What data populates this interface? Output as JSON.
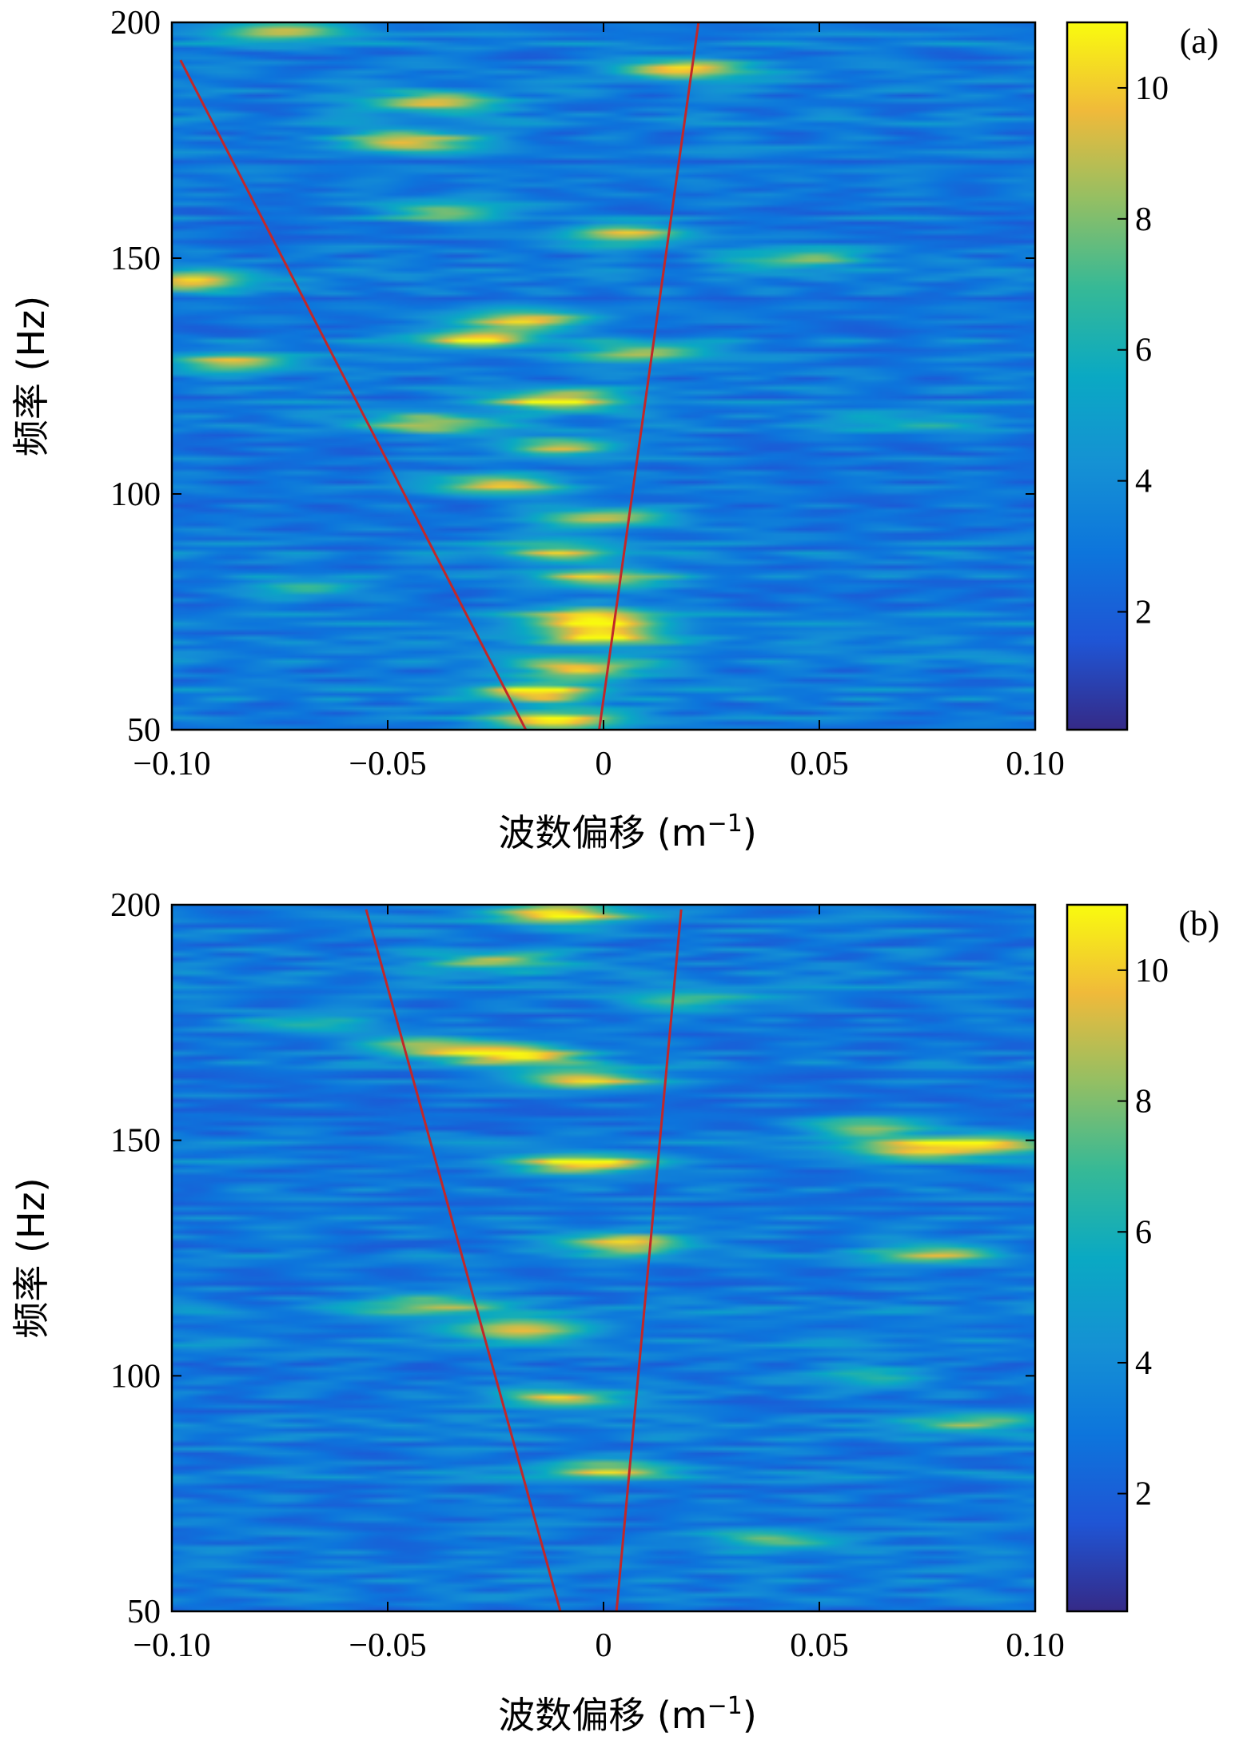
{
  "chart_data": [
    {
      "type": "heatmap",
      "panel_label": "(a)",
      "xlabel_main": "波数偏移 (m",
      "xlabel_sup": "−1",
      "xlabel_end": ")",
      "ylabel": "频率 (Hz)",
      "xlim": [
        -0.1,
        0.1
      ],
      "ylim": [
        50,
        200
      ],
      "x_ticks": [
        -0.1,
        -0.05,
        0,
        0.05,
        0.1
      ],
      "x_tick_labels": [
        "−0.10",
        "−0.05",
        "0",
        "0.05",
        "0.10"
      ],
      "y_ticks": [
        50,
        100,
        150,
        200
      ],
      "y_tick_labels": [
        "50",
        "100",
        "150",
        "200"
      ],
      "colorbar": {
        "min": 0.2,
        "max": 11,
        "ticks": [
          2,
          4,
          6,
          8,
          10
        ],
        "tick_labels": [
          "2",
          "4",
          "6",
          "8",
          "10"
        ],
        "colormap": "parula"
      },
      "hotspots": [
        {
          "x": -0.01,
          "y": 52,
          "v": 10.5
        },
        {
          "x": -0.015,
          "y": 58,
          "v": 9.8
        },
        {
          "x": -0.005,
          "y": 63,
          "v": 9.5
        },
        {
          "x": 0.0,
          "y": 70,
          "v": 10.6
        },
        {
          "x": -0.002,
          "y": 74,
          "v": 10.0
        },
        {
          "x": 0.0,
          "y": 82,
          "v": 9.2
        },
        {
          "x": -0.01,
          "y": 88,
          "v": 8.0
        },
        {
          "x": 0.0,
          "y": 95,
          "v": 9.0
        },
        {
          "x": -0.025,
          "y": 102,
          "v": 9.2
        },
        {
          "x": -0.01,
          "y": 110,
          "v": 8.5
        },
        {
          "x": -0.01,
          "y": 120,
          "v": 10.0
        },
        {
          "x": -0.04,
          "y": 115,
          "v": 8.5
        },
        {
          "x": -0.03,
          "y": 133,
          "v": 9.5
        },
        {
          "x": -0.018,
          "y": 137,
          "v": 9.2
        },
        {
          "x": 0.01,
          "y": 130,
          "v": 8.5
        },
        {
          "x": 0.005,
          "y": 155,
          "v": 9.5
        },
        {
          "x": -0.035,
          "y": 160,
          "v": 8.0
        },
        {
          "x": -0.045,
          "y": 175,
          "v": 9.5
        },
        {
          "x": -0.04,
          "y": 183,
          "v": 9.2
        },
        {
          "x": -0.075,
          "y": 198,
          "v": 9.0
        },
        {
          "x": 0.02,
          "y": 190,
          "v": 9.5
        },
        {
          "x": -0.095,
          "y": 145,
          "v": 9.0
        },
        {
          "x": -0.085,
          "y": 128,
          "v": 8.5
        },
        {
          "x": 0.045,
          "y": 150,
          "v": 7.5
        },
        {
          "x": -0.07,
          "y": 80,
          "v": 6.5
        },
        {
          "x": 0.07,
          "y": 115,
          "v": 5.5
        }
      ],
      "lines": [
        {
          "points": [
            [
              -0.098,
              192
            ],
            [
              -0.018,
              50
            ]
          ]
        },
        {
          "points": [
            [
              -0.001,
              50
            ],
            [
              0.022,
              200
            ]
          ]
        }
      ]
    },
    {
      "type": "heatmap",
      "panel_label": "(b)",
      "xlabel_main": "波数偏移 (m",
      "xlabel_sup": "−1",
      "xlabel_end": ")",
      "ylabel": "频率 (Hz)",
      "xlim": [
        -0.1,
        0.1
      ],
      "ylim": [
        50,
        200
      ],
      "x_ticks": [
        -0.1,
        -0.05,
        0,
        0.05,
        0.1
      ],
      "x_tick_labels": [
        "−0.10",
        "−0.05",
        "0",
        "0.05",
        "0.10"
      ],
      "y_ticks": [
        50,
        100,
        150,
        200
      ],
      "y_tick_labels": [
        "50",
        "100",
        "150",
        "200"
      ],
      "colorbar": {
        "min": 0.2,
        "max": 11,
        "ticks": [
          2,
          4,
          6,
          8,
          10
        ],
        "tick_labels": [
          "2",
          "4",
          "6",
          "8",
          "10"
        ],
        "colormap": "parula"
      },
      "hotspots": [
        {
          "x": -0.01,
          "y": 198,
          "v": 10.5
        },
        {
          "x": -0.02,
          "y": 168,
          "v": 10.2
        },
        {
          "x": -0.005,
          "y": 163,
          "v": 10.0
        },
        {
          "x": -0.04,
          "y": 170,
          "v": 8.5
        },
        {
          "x": -0.005,
          "y": 145,
          "v": 10.2
        },
        {
          "x": 0.005,
          "y": 128,
          "v": 10.0
        },
        {
          "x": -0.02,
          "y": 110,
          "v": 9.5
        },
        {
          "x": -0.04,
          "y": 115,
          "v": 8.0
        },
        {
          "x": -0.01,
          "y": 95,
          "v": 9.0
        },
        {
          "x": 0.0,
          "y": 80,
          "v": 8.5
        },
        {
          "x": 0.07,
          "y": 148,
          "v": 8.5
        },
        {
          "x": 0.09,
          "y": 149,
          "v": 9.0
        },
        {
          "x": 0.06,
          "y": 153,
          "v": 8.0
        },
        {
          "x": 0.075,
          "y": 126,
          "v": 8.0
        },
        {
          "x": 0.085,
          "y": 90,
          "v": 7.0
        },
        {
          "x": 0.04,
          "y": 65,
          "v": 7.5
        },
        {
          "x": -0.025,
          "y": 188,
          "v": 8.0
        },
        {
          "x": 0.02,
          "y": 180,
          "v": 7.0
        },
        {
          "x": 0.06,
          "y": 100,
          "v": 6.0
        },
        {
          "x": -0.07,
          "y": 175,
          "v": 6.0
        }
      ],
      "lines": [
        {
          "points": [
            [
              -0.055,
              199
            ],
            [
              -0.01,
              50
            ]
          ]
        },
        {
          "points": [
            [
              0.003,
              50
            ],
            [
              0.018,
              199
            ]
          ]
        }
      ]
    }
  ]
}
